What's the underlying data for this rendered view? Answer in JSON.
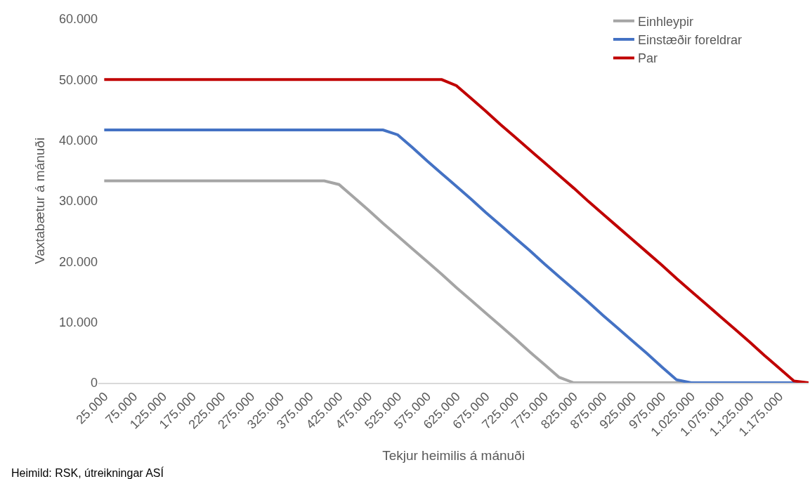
{
  "chart_data": {
    "type": "line",
    "xlabel": "Tekjur heimilis á mánuði",
    "ylabel": "Vaxtabætur á mánuði",
    "annotations": [
      "Heimild: RSK, útreikningar ASÍ"
    ],
    "categories": [
      "25.000",
      null,
      "75.000",
      null,
      "125.000",
      null,
      "175.000",
      null,
      "225.000",
      null,
      "275.000",
      null,
      "325.000",
      null,
      "375.000",
      null,
      "425.000",
      null,
      "475.000",
      null,
      "525.000",
      null,
      "575.000",
      null,
      "625.000",
      null,
      "675.000",
      null,
      "725.000",
      null,
      "775.000",
      null,
      "825.000",
      null,
      "875.000",
      null,
      "925.000",
      null,
      "975.000",
      null,
      "1.025.000",
      null,
      "1.075.000",
      null,
      "1.125.000",
      null,
      "1.175.000",
      null,
      null
    ],
    "series": [
      {
        "name": "Einhleypir",
        "color": "#a5a5a5",
        "values": [
          33300,
          33300,
          33300,
          33300,
          33300,
          33300,
          33300,
          33300,
          33300,
          33300,
          33300,
          33300,
          33300,
          33300,
          33300,
          33300,
          32700,
          30600,
          28500,
          26300,
          24200,
          22100,
          20000,
          17900,
          15700,
          13600,
          11500,
          9400,
          7300,
          5100,
          3000,
          900,
          0,
          0,
          0,
          0,
          0,
          0,
          0,
          0,
          0,
          0,
          0,
          0,
          0,
          0,
          0,
          0,
          0
        ]
      },
      {
        "name": "Einstæðir foreldrar",
        "color": "#4472c4",
        "values": [
          41700,
          41700,
          41700,
          41700,
          41700,
          41700,
          41700,
          41700,
          41700,
          41700,
          41700,
          41700,
          41700,
          41700,
          41700,
          41700,
          41700,
          41700,
          41700,
          41700,
          40900,
          38800,
          36600,
          34500,
          32400,
          30300,
          28100,
          26000,
          23900,
          21800,
          19600,
          17500,
          15400,
          13300,
          11100,
          9000,
          6900,
          4800,
          2600,
          500,
          0,
          0,
          0,
          0,
          0,
          0,
          0,
          0,
          0
        ]
      },
      {
        "name": "Par",
        "color": "#c00000",
        "values": [
          50000,
          50000,
          50000,
          50000,
          50000,
          50000,
          50000,
          50000,
          50000,
          50000,
          50000,
          50000,
          50000,
          50000,
          50000,
          50000,
          50000,
          50000,
          50000,
          50000,
          50000,
          50000,
          50000,
          50000,
          49000,
          46900,
          44800,
          42600,
          40500,
          38400,
          36300,
          34200,
          32100,
          29900,
          27800,
          25700,
          23600,
          21500,
          19400,
          17200,
          15100,
          13000,
          10900,
          8800,
          6700,
          4500,
          2400,
          300,
          0
        ]
      }
    ],
    "ylim": [
      0,
      60000
    ],
    "yticks": [
      0,
      {
        "value": 10000,
        "label": "10.000"
      },
      {
        "value": 20000,
        "label": "20.000"
      },
      {
        "value": 30000,
        "label": "30.000"
      },
      {
        "value": 40000,
        "label": "40.000"
      },
      {
        "value": 50000,
        "label": "50.000"
      },
      {
        "value": 60000,
        "label": "60.000"
      }
    ],
    "grid": false,
    "legend": "top right",
    "marker": "none",
    "line_style": "solid"
  }
}
